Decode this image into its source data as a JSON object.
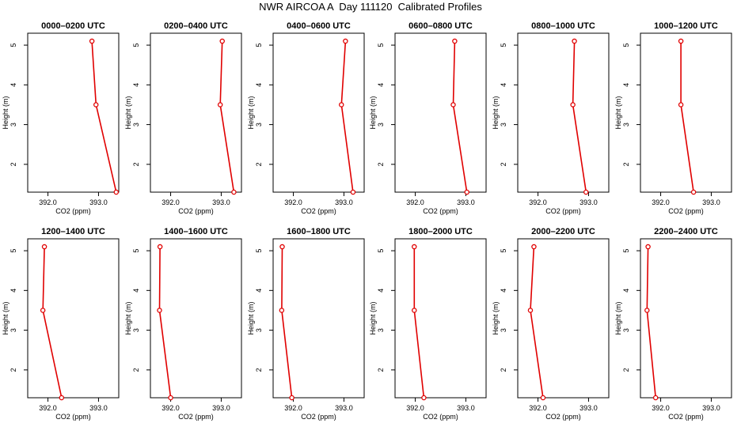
{
  "figure_title": "NWR AIRCOA A  Day 111120  Calibrated Profiles",
  "chart_data": [
    {
      "type": "line",
      "title": "0000–0200 UTC",
      "xlabel": "CO2 (ppm)",
      "ylabel": "Height (m)",
      "xlim": [
        391.6,
        393.4
      ],
      "ylim": [
        1.3,
        5.3
      ],
      "x_ticks": [
        "392.0",
        "393.0"
      ],
      "y_ticks": [
        "2",
        "3",
        "4",
        "5"
      ],
      "series": [
        {
          "x": [
            393.35,
            392.95,
            392.87
          ],
          "y": [
            1.3,
            3.5,
            5.1
          ]
        }
      ],
      "color": "#e00000"
    },
    {
      "type": "line",
      "title": "0200–0400 UTC",
      "xlabel": "CO2 (ppm)",
      "ylabel": "Height (m)",
      "xlim": [
        391.6,
        393.4
      ],
      "ylim": [
        1.3,
        5.3
      ],
      "x_ticks": [
        "392.0",
        "393.0"
      ],
      "y_ticks": [
        "2",
        "3",
        "4",
        "5"
      ],
      "series": [
        {
          "x": [
            393.25,
            392.98,
            393.02
          ],
          "y": [
            1.3,
            3.5,
            5.1
          ]
        }
      ],
      "color": "#e00000"
    },
    {
      "type": "line",
      "title": "0400–0600 UTC",
      "xlabel": "CO2 (ppm)",
      "ylabel": "Height (m)",
      "xlim": [
        391.6,
        393.4
      ],
      "ylim": [
        1.3,
        5.3
      ],
      "x_ticks": [
        "392.0",
        "393.0"
      ],
      "y_ticks": [
        "2",
        "3",
        "4",
        "5"
      ],
      "series": [
        {
          "x": [
            393.18,
            392.95,
            393.03
          ],
          "y": [
            1.3,
            3.5,
            5.1
          ]
        }
      ],
      "color": "#e00000"
    },
    {
      "type": "line",
      "title": "0600–0800 UTC",
      "xlabel": "CO2 (ppm)",
      "ylabel": "Height (m)",
      "xlim": [
        391.6,
        393.4
      ],
      "ylim": [
        1.3,
        5.3
      ],
      "x_ticks": [
        "392.0",
        "393.0"
      ],
      "y_ticks": [
        "2",
        "3",
        "4",
        "5"
      ],
      "series": [
        {
          "x": [
            393.02,
            392.75,
            392.78
          ],
          "y": [
            1.3,
            3.5,
            5.1
          ]
        }
      ],
      "color": "#e00000"
    },
    {
      "type": "line",
      "title": "0800–1000 UTC",
      "xlabel": "CO2 (ppm)",
      "ylabel": "Height (m)",
      "xlim": [
        391.6,
        393.4
      ],
      "ylim": [
        1.3,
        5.3
      ],
      "x_ticks": [
        "392.0",
        "393.0"
      ],
      "y_ticks": [
        "2",
        "3",
        "4",
        "5"
      ],
      "series": [
        {
          "x": [
            392.95,
            392.69,
            392.72
          ],
          "y": [
            1.3,
            3.5,
            5.1
          ]
        }
      ],
      "color": "#e00000"
    },
    {
      "type": "line",
      "title": "1000–1200 UTC",
      "xlabel": "CO2 (ppm)",
      "ylabel": "Height (m)",
      "xlim": [
        391.6,
        393.4
      ],
      "ylim": [
        1.3,
        5.3
      ],
      "x_ticks": [
        "392.0",
        "393.0"
      ],
      "y_ticks": [
        "2",
        "3",
        "4",
        "5"
      ],
      "series": [
        {
          "x": [
            392.65,
            392.4,
            392.4
          ],
          "y": [
            1.3,
            3.5,
            5.1
          ]
        }
      ],
      "color": "#e00000"
    },
    {
      "type": "line",
      "title": "1200–1400 UTC",
      "xlabel": "CO2 (ppm)",
      "ylabel": "Height (m)",
      "xlim": [
        391.6,
        393.4
      ],
      "ylim": [
        1.3,
        5.3
      ],
      "x_ticks": [
        "392.0",
        "393.0"
      ],
      "y_ticks": [
        "2",
        "3",
        "4",
        "5"
      ],
      "series": [
        {
          "x": [
            392.27,
            391.9,
            391.93
          ],
          "y": [
            1.3,
            3.5,
            5.1
          ]
        }
      ],
      "color": "#e00000"
    },
    {
      "type": "line",
      "title": "1400–1600 UTC",
      "xlabel": "CO2 (ppm)",
      "ylabel": "Height (m)",
      "xlim": [
        391.6,
        393.4
      ],
      "ylim": [
        1.3,
        5.3
      ],
      "x_ticks": [
        "392.0",
        "393.0"
      ],
      "y_ticks": [
        "2",
        "3",
        "4",
        "5"
      ],
      "series": [
        {
          "x": [
            392.0,
            391.78,
            391.79
          ],
          "y": [
            1.3,
            3.5,
            5.1
          ]
        }
      ],
      "color": "#e00000"
    },
    {
      "type": "line",
      "title": "1600–1800 UTC",
      "xlabel": "CO2 (ppm)",
      "ylabel": "Height (m)",
      "xlim": [
        391.6,
        393.4
      ],
      "ylim": [
        1.3,
        5.3
      ],
      "x_ticks": [
        "392.0",
        "393.0"
      ],
      "y_ticks": [
        "2",
        "3",
        "4",
        "5"
      ],
      "series": [
        {
          "x": [
            391.97,
            391.77,
            391.78
          ],
          "y": [
            1.3,
            3.5,
            5.1
          ]
        }
      ],
      "color": "#e00000"
    },
    {
      "type": "line",
      "title": "1800–2000 UTC",
      "xlabel": "CO2 (ppm)",
      "ylabel": "Height (m)",
      "xlim": [
        391.6,
        393.4
      ],
      "ylim": [
        1.3,
        5.3
      ],
      "x_ticks": [
        "392.0",
        "393.0"
      ],
      "y_ticks": [
        "2",
        "3",
        "4",
        "5"
      ],
      "series": [
        {
          "x": [
            392.17,
            391.98,
            391.98
          ],
          "y": [
            1.3,
            3.5,
            5.1
          ]
        }
      ],
      "color": "#e00000"
    },
    {
      "type": "line",
      "title": "2000–2200 UTC",
      "xlabel": "CO2 (ppm)",
      "ylabel": "Height (m)",
      "xlim": [
        391.6,
        393.4
      ],
      "ylim": [
        1.3,
        5.3
      ],
      "x_ticks": [
        "392.0",
        "393.0"
      ],
      "y_ticks": [
        "2",
        "3",
        "4",
        "5"
      ],
      "series": [
        {
          "x": [
            392.1,
            391.85,
            391.92
          ],
          "y": [
            1.3,
            3.5,
            5.1
          ]
        }
      ],
      "color": "#e00000"
    },
    {
      "type": "line",
      "title": "2200–2400 UTC",
      "xlabel": "CO2 (ppm)",
      "ylabel": "Height (m)",
      "xlim": [
        391.6,
        393.4
      ],
      "ylim": [
        1.3,
        5.3
      ],
      "x_ticks": [
        "392.0",
        "393.0"
      ],
      "y_ticks": [
        "2",
        "3",
        "4",
        "5"
      ],
      "series": [
        {
          "x": [
            391.9,
            391.73,
            391.75
          ],
          "y": [
            1.3,
            3.5,
            5.1
          ]
        }
      ],
      "color": "#e00000"
    }
  ]
}
